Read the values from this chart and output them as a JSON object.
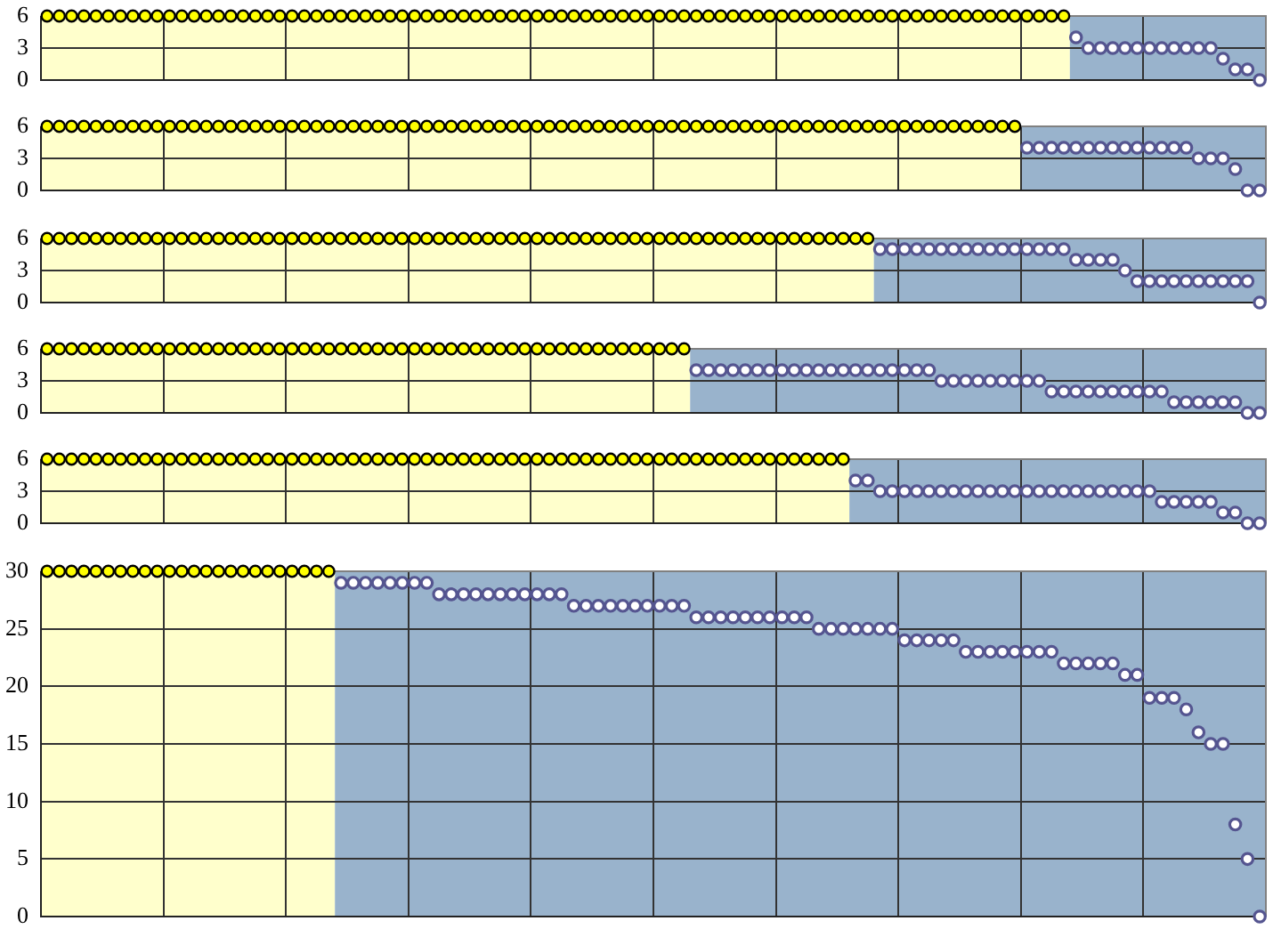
{
  "chart_data": [
    {
      "type": "scatter",
      "marker": "circle",
      "grid": true,
      "tick_labels": "y",
      "ylim": [
        0,
        6
      ],
      "yticks": [
        0,
        3,
        6
      ],
      "categories": [
        null,
        null,
        null,
        null,
        null,
        null,
        null,
        null,
        null,
        null,
        null,
        null,
        null,
        null,
        null,
        null,
        null,
        null,
        null,
        null,
        null,
        null,
        null,
        null,
        null,
        null,
        null,
        null,
        null,
        null,
        null,
        null,
        null,
        null,
        null,
        null,
        null,
        null,
        null,
        null,
        null,
        null,
        null,
        null,
        null,
        null,
        null,
        null,
        null,
        null,
        null,
        null,
        null,
        null,
        null,
        null,
        null,
        null,
        null,
        null,
        null,
        null,
        null,
        null,
        null,
        null,
        null,
        null,
        null,
        null,
        null,
        null,
        null,
        null,
        null,
        null,
        null,
        null,
        null,
        null,
        null,
        null,
        null,
        null,
        null,
        null,
        null,
        null,
        null,
        null,
        null,
        null,
        null,
        null,
        null,
        null,
        null,
        null,
        null,
        null
      ],
      "series": [
        {
          "color": "#ffff00",
          "values": [
            6,
            6,
            6,
            6,
            6,
            6,
            6,
            6,
            6,
            6,
            6,
            6,
            6,
            6,
            6,
            6,
            6,
            6,
            6,
            6,
            6,
            6,
            6,
            6,
            6,
            6,
            6,
            6,
            6,
            6,
            6,
            6,
            6,
            6,
            6,
            6,
            6,
            6,
            6,
            6,
            6,
            6,
            6,
            6,
            6,
            6,
            6,
            6,
            6,
            6,
            6,
            6,
            6,
            6,
            6,
            6,
            6,
            6,
            6,
            6,
            6,
            6,
            6,
            6,
            6,
            6,
            6,
            6,
            6,
            6,
            6,
            6,
            6,
            6,
            6,
            6,
            6,
            6,
            6,
            6,
            6,
            6,
            6,
            6,
            null,
            null,
            null,
            null,
            null,
            null,
            null,
            null,
            null,
            null,
            null,
            null,
            null,
            null,
            null,
            null
          ]
        },
        {
          "color": "#ffffff",
          "values": [
            null,
            null,
            null,
            null,
            null,
            null,
            null,
            null,
            null,
            null,
            null,
            null,
            null,
            null,
            null,
            null,
            null,
            null,
            null,
            null,
            null,
            null,
            null,
            null,
            null,
            null,
            null,
            null,
            null,
            null,
            null,
            null,
            null,
            null,
            null,
            null,
            null,
            null,
            null,
            null,
            null,
            null,
            null,
            null,
            null,
            null,
            null,
            null,
            null,
            null,
            null,
            null,
            null,
            null,
            null,
            null,
            null,
            null,
            null,
            null,
            null,
            null,
            null,
            null,
            null,
            null,
            null,
            null,
            null,
            null,
            null,
            null,
            null,
            null,
            null,
            null,
            null,
            null,
            null,
            null,
            null,
            null,
            null,
            null,
            4,
            3,
            3,
            3,
            3,
            3,
            3,
            3,
            3,
            3,
            3,
            3,
            2,
            1,
            1,
            0
          ]
        }
      ]
    },
    {
      "type": "scatter",
      "marker": "circle",
      "grid": true,
      "tick_labels": "y",
      "ylim": [
        0,
        6
      ],
      "yticks": [
        0,
        3,
        6
      ],
      "categories": [
        null,
        null,
        null,
        null,
        null,
        null,
        null,
        null,
        null,
        null,
        null,
        null,
        null,
        null,
        null,
        null,
        null,
        null,
        null,
        null,
        null,
        null,
        null,
        null,
        null,
        null,
        null,
        null,
        null,
        null,
        null,
        null,
        null,
        null,
        null,
        null,
        null,
        null,
        null,
        null,
        null,
        null,
        null,
        null,
        null,
        null,
        null,
        null,
        null,
        null,
        null,
        null,
        null,
        null,
        null,
        null,
        null,
        null,
        null,
        null,
        null,
        null,
        null,
        null,
        null,
        null,
        null,
        null,
        null,
        null,
        null,
        null,
        null,
        null,
        null,
        null,
        null,
        null,
        null,
        null,
        null,
        null,
        null,
        null,
        null,
        null,
        null,
        null,
        null,
        null,
        null,
        null,
        null,
        null,
        null,
        null,
        null,
        null,
        null,
        null
      ],
      "series": [
        {
          "color": "#ffff00",
          "values": [
            6,
            6,
            6,
            6,
            6,
            6,
            6,
            6,
            6,
            6,
            6,
            6,
            6,
            6,
            6,
            6,
            6,
            6,
            6,
            6,
            6,
            6,
            6,
            6,
            6,
            6,
            6,
            6,
            6,
            6,
            6,
            6,
            6,
            6,
            6,
            6,
            6,
            6,
            6,
            6,
            6,
            6,
            6,
            6,
            6,
            6,
            6,
            6,
            6,
            6,
            6,
            6,
            6,
            6,
            6,
            6,
            6,
            6,
            6,
            6,
            6,
            6,
            6,
            6,
            6,
            6,
            6,
            6,
            6,
            6,
            6,
            6,
            6,
            6,
            6,
            6,
            6,
            6,
            6,
            6,
            null,
            null,
            null,
            null,
            null,
            null,
            null,
            null,
            null,
            null,
            null,
            null,
            null,
            null,
            null,
            null,
            null,
            null,
            null,
            null
          ]
        },
        {
          "color": "#ffffff",
          "values": [
            null,
            null,
            null,
            null,
            null,
            null,
            null,
            null,
            null,
            null,
            null,
            null,
            null,
            null,
            null,
            null,
            null,
            null,
            null,
            null,
            null,
            null,
            null,
            null,
            null,
            null,
            null,
            null,
            null,
            null,
            null,
            null,
            null,
            null,
            null,
            null,
            null,
            null,
            null,
            null,
            null,
            null,
            null,
            null,
            null,
            null,
            null,
            null,
            null,
            null,
            null,
            null,
            null,
            null,
            null,
            null,
            null,
            null,
            null,
            null,
            null,
            null,
            null,
            null,
            null,
            null,
            null,
            null,
            null,
            null,
            null,
            null,
            null,
            null,
            null,
            null,
            null,
            null,
            null,
            null,
            4,
            4,
            4,
            4,
            4,
            4,
            4,
            4,
            4,
            4,
            4,
            4,
            4,
            4,
            3,
            3,
            3,
            2,
            0,
            0
          ]
        }
      ]
    },
    {
      "type": "scatter",
      "marker": "circle",
      "grid": true,
      "tick_labels": "y",
      "ylim": [
        0,
        6
      ],
      "yticks": [
        0,
        3,
        6
      ],
      "categories": [
        null,
        null,
        null,
        null,
        null,
        null,
        null,
        null,
        null,
        null,
        null,
        null,
        null,
        null,
        null,
        null,
        null,
        null,
        null,
        null,
        null,
        null,
        null,
        null,
        null,
        null,
        null,
        null,
        null,
        null,
        null,
        null,
        null,
        null,
        null,
        null,
        null,
        null,
        null,
        null,
        null,
        null,
        null,
        null,
        null,
        null,
        null,
        null,
        null,
        null,
        null,
        null,
        null,
        null,
        null,
        null,
        null,
        null,
        null,
        null,
        null,
        null,
        null,
        null,
        null,
        null,
        null,
        null,
        null,
        null,
        null,
        null,
        null,
        null,
        null,
        null,
        null,
        null,
        null,
        null,
        null,
        null,
        null,
        null,
        null,
        null,
        null,
        null,
        null,
        null,
        null,
        null,
        null,
        null,
        null,
        null,
        null,
        null,
        null,
        null
      ],
      "series": [
        {
          "color": "#ffff00",
          "values": [
            6,
            6,
            6,
            6,
            6,
            6,
            6,
            6,
            6,
            6,
            6,
            6,
            6,
            6,
            6,
            6,
            6,
            6,
            6,
            6,
            6,
            6,
            6,
            6,
            6,
            6,
            6,
            6,
            6,
            6,
            6,
            6,
            6,
            6,
            6,
            6,
            6,
            6,
            6,
            6,
            6,
            6,
            6,
            6,
            6,
            6,
            6,
            6,
            6,
            6,
            6,
            6,
            6,
            6,
            6,
            6,
            6,
            6,
            6,
            6,
            6,
            6,
            6,
            6,
            6,
            6,
            6,
            6,
            null,
            null,
            null,
            null,
            null,
            null,
            null,
            null,
            null,
            null,
            null,
            null,
            null,
            null,
            null,
            null,
            null,
            null,
            null,
            null,
            null,
            null,
            null,
            null,
            null,
            null,
            null,
            null,
            null,
            null,
            null,
            null
          ]
        },
        {
          "color": "#ffffff",
          "values": [
            null,
            null,
            null,
            null,
            null,
            null,
            null,
            null,
            null,
            null,
            null,
            null,
            null,
            null,
            null,
            null,
            null,
            null,
            null,
            null,
            null,
            null,
            null,
            null,
            null,
            null,
            null,
            null,
            null,
            null,
            null,
            null,
            null,
            null,
            null,
            null,
            null,
            null,
            null,
            null,
            null,
            null,
            null,
            null,
            null,
            null,
            null,
            null,
            null,
            null,
            null,
            null,
            null,
            null,
            null,
            null,
            null,
            null,
            null,
            null,
            null,
            null,
            null,
            null,
            null,
            null,
            null,
            null,
            5,
            5,
            5,
            5,
            5,
            5,
            5,
            5,
            5,
            5,
            5,
            5,
            5,
            5,
            5,
            5,
            4,
            4,
            4,
            4,
            3,
            2,
            2,
            2,
            2,
            2,
            2,
            2,
            2,
            2,
            2,
            0
          ]
        }
      ]
    },
    {
      "type": "scatter",
      "marker": "circle",
      "grid": true,
      "tick_labels": "y",
      "ylim": [
        0,
        6
      ],
      "yticks": [
        0,
        3,
        6
      ],
      "categories": [
        null,
        null,
        null,
        null,
        null,
        null,
        null,
        null,
        null,
        null,
        null,
        null,
        null,
        null,
        null,
        null,
        null,
        null,
        null,
        null,
        null,
        null,
        null,
        null,
        null,
        null,
        null,
        null,
        null,
        null,
        null,
        null,
        null,
        null,
        null,
        null,
        null,
        null,
        null,
        null,
        null,
        null,
        null,
        null,
        null,
        null,
        null,
        null,
        null,
        null,
        null,
        null,
        null,
        null,
        null,
        null,
        null,
        null,
        null,
        null,
        null,
        null,
        null,
        null,
        null,
        null,
        null,
        null,
        null,
        null,
        null,
        null,
        null,
        null,
        null,
        null,
        null,
        null,
        null,
        null,
        null,
        null,
        null,
        null,
        null,
        null,
        null,
        null,
        null,
        null,
        null,
        null,
        null,
        null,
        null,
        null,
        null,
        null,
        null,
        null
      ],
      "series": [
        {
          "color": "#ffff00",
          "values": [
            6,
            6,
            6,
            6,
            6,
            6,
            6,
            6,
            6,
            6,
            6,
            6,
            6,
            6,
            6,
            6,
            6,
            6,
            6,
            6,
            6,
            6,
            6,
            6,
            6,
            6,
            6,
            6,
            6,
            6,
            6,
            6,
            6,
            6,
            6,
            6,
            6,
            6,
            6,
            6,
            6,
            6,
            6,
            6,
            6,
            6,
            6,
            6,
            6,
            6,
            6,
            6,
            6,
            null,
            null,
            null,
            null,
            null,
            null,
            null,
            null,
            null,
            null,
            null,
            null,
            null,
            null,
            null,
            null,
            null,
            null,
            null,
            null,
            null,
            null,
            null,
            null,
            null,
            null,
            null,
            null,
            null,
            null,
            null,
            null,
            null,
            null,
            null,
            null,
            null,
            null,
            null,
            null,
            null,
            null,
            null,
            null,
            null,
            null,
            null
          ]
        },
        {
          "color": "#ffffff",
          "values": [
            null,
            null,
            null,
            null,
            null,
            null,
            null,
            null,
            null,
            null,
            null,
            null,
            null,
            null,
            null,
            null,
            null,
            null,
            null,
            null,
            null,
            null,
            null,
            null,
            null,
            null,
            null,
            null,
            null,
            null,
            null,
            null,
            null,
            null,
            null,
            null,
            null,
            null,
            null,
            null,
            null,
            null,
            null,
            null,
            null,
            null,
            null,
            null,
            null,
            null,
            null,
            null,
            null,
            4,
            4,
            4,
            4,
            4,
            4,
            4,
            4,
            4,
            4,
            4,
            4,
            4,
            4,
            4,
            4,
            4,
            4,
            4,
            4,
            3,
            3,
            3,
            3,
            3,
            3,
            3,
            3,
            3,
            2,
            2,
            2,
            2,
            2,
            2,
            2,
            2,
            2,
            2,
            1,
            1,
            1,
            1,
            1,
            1,
            0,
            0
          ]
        }
      ]
    },
    {
      "type": "scatter",
      "marker": "circle",
      "grid": true,
      "tick_labels": "y",
      "ylim": [
        0,
        6
      ],
      "yticks": [
        0,
        3,
        6
      ],
      "categories": [
        null,
        null,
        null,
        null,
        null,
        null,
        null,
        null,
        null,
        null,
        null,
        null,
        null,
        null,
        null,
        null,
        null,
        null,
        null,
        null,
        null,
        null,
        null,
        null,
        null,
        null,
        null,
        null,
        null,
        null,
        null,
        null,
        null,
        null,
        null,
        null,
        null,
        null,
        null,
        null,
        null,
        null,
        null,
        null,
        null,
        null,
        null,
        null,
        null,
        null,
        null,
        null,
        null,
        null,
        null,
        null,
        null,
        null,
        null,
        null,
        null,
        null,
        null,
        null,
        null,
        null,
        null,
        null,
        null,
        null,
        null,
        null,
        null,
        null,
        null,
        null,
        null,
        null,
        null,
        null,
        null,
        null,
        null,
        null,
        null,
        null,
        null,
        null,
        null,
        null,
        null,
        null,
        null,
        null,
        null,
        null,
        null,
        null,
        null,
        null
      ],
      "series": [
        {
          "color": "#ffff00",
          "values": [
            6,
            6,
            6,
            6,
            6,
            6,
            6,
            6,
            6,
            6,
            6,
            6,
            6,
            6,
            6,
            6,
            6,
            6,
            6,
            6,
            6,
            6,
            6,
            6,
            6,
            6,
            6,
            6,
            6,
            6,
            6,
            6,
            6,
            6,
            6,
            6,
            6,
            6,
            6,
            6,
            6,
            6,
            6,
            6,
            6,
            6,
            6,
            6,
            6,
            6,
            6,
            6,
            6,
            6,
            6,
            6,
            6,
            6,
            6,
            6,
            6,
            6,
            6,
            6,
            6,
            6,
            null,
            null,
            null,
            null,
            null,
            null,
            null,
            null,
            null,
            null,
            null,
            null,
            null,
            null,
            null,
            null,
            null,
            null,
            null,
            null,
            null,
            null,
            null,
            null,
            null,
            null,
            null,
            null,
            null,
            null,
            null,
            null,
            null,
            null
          ]
        },
        {
          "color": "#ffffff",
          "values": [
            null,
            null,
            null,
            null,
            null,
            null,
            null,
            null,
            null,
            null,
            null,
            null,
            null,
            null,
            null,
            null,
            null,
            null,
            null,
            null,
            null,
            null,
            null,
            null,
            null,
            null,
            null,
            null,
            null,
            null,
            null,
            null,
            null,
            null,
            null,
            null,
            null,
            null,
            null,
            null,
            null,
            null,
            null,
            null,
            null,
            null,
            null,
            null,
            null,
            null,
            null,
            null,
            null,
            null,
            null,
            null,
            null,
            null,
            null,
            null,
            null,
            null,
            null,
            null,
            null,
            null,
            4,
            4,
            3,
            3,
            3,
            3,
            3,
            3,
            3,
            3,
            3,
            3,
            3,
            3,
            3,
            3,
            3,
            3,
            3,
            3,
            3,
            3,
            3,
            3,
            3,
            2,
            2,
            2,
            2,
            2,
            1,
            1,
            0,
            0
          ]
        }
      ]
    },
    {
      "type": "scatter",
      "marker": "circle",
      "grid": true,
      "tick_labels": "y",
      "ylim": [
        0,
        30
      ],
      "yticks": [
        0,
        5,
        10,
        15,
        20,
        25,
        30
      ],
      "categories": [
        null,
        null,
        null,
        null,
        null,
        null,
        null,
        null,
        null,
        null,
        null,
        null,
        null,
        null,
        null,
        null,
        null,
        null,
        null,
        null,
        null,
        null,
        null,
        null,
        null,
        null,
        null,
        null,
        null,
        null,
        null,
        null,
        null,
        null,
        null,
        null,
        null,
        null,
        null,
        null,
        null,
        null,
        null,
        null,
        null,
        null,
        null,
        null,
        null,
        null,
        null,
        null,
        null,
        null,
        null,
        null,
        null,
        null,
        null,
        null,
        null,
        null,
        null,
        null,
        null,
        null,
        null,
        null,
        null,
        null,
        null,
        null,
        null,
        null,
        null,
        null,
        null,
        null,
        null,
        null,
        null,
        null,
        null,
        null,
        null,
        null,
        null,
        null,
        null,
        null,
        null,
        null,
        null,
        null,
        null,
        null,
        null,
        null,
        null,
        null
      ],
      "series": [
        {
          "color": "#ffff00",
          "values": [
            30,
            30,
            30,
            30,
            30,
            30,
            30,
            30,
            30,
            30,
            30,
            30,
            30,
            30,
            30,
            30,
            30,
            30,
            30,
            30,
            30,
            30,
            30,
            30,
            null,
            null,
            null,
            null,
            null,
            null,
            null,
            null,
            null,
            null,
            null,
            null,
            null,
            null,
            null,
            null,
            null,
            null,
            null,
            null,
            null,
            null,
            null,
            null,
            null,
            null,
            null,
            null,
            null,
            null,
            null,
            null,
            null,
            null,
            null,
            null,
            null,
            null,
            null,
            null,
            null,
            null,
            null,
            null,
            null,
            null,
            null,
            null,
            null,
            null,
            null,
            null,
            null,
            null,
            null,
            null,
            null,
            null,
            null,
            null,
            null,
            null,
            null,
            null,
            null,
            null,
            null,
            null,
            null,
            null,
            null,
            null,
            null,
            null,
            null,
            null
          ]
        },
        {
          "color": "#ffffff",
          "values": [
            null,
            null,
            null,
            null,
            null,
            null,
            null,
            null,
            null,
            null,
            null,
            null,
            null,
            null,
            null,
            null,
            null,
            null,
            null,
            null,
            null,
            null,
            null,
            null,
            29,
            29,
            29,
            29,
            29,
            29,
            29,
            29,
            28,
            28,
            28,
            28,
            28,
            28,
            28,
            28,
            28,
            28,
            28,
            27,
            27,
            27,
            27,
            27,
            27,
            27,
            27,
            27,
            27,
            26,
            26,
            26,
            26,
            26,
            26,
            26,
            26,
            26,
            26,
            25,
            25,
            25,
            25,
            25,
            25,
            25,
            24,
            24,
            24,
            24,
            24,
            23,
            23,
            23,
            23,
            23,
            23,
            23,
            23,
            22,
            22,
            22,
            22,
            22,
            21,
            21,
            19,
            19,
            19,
            18,
            16,
            15,
            15,
            8,
            5,
            0
          ]
        }
      ]
    }
  ]
}
